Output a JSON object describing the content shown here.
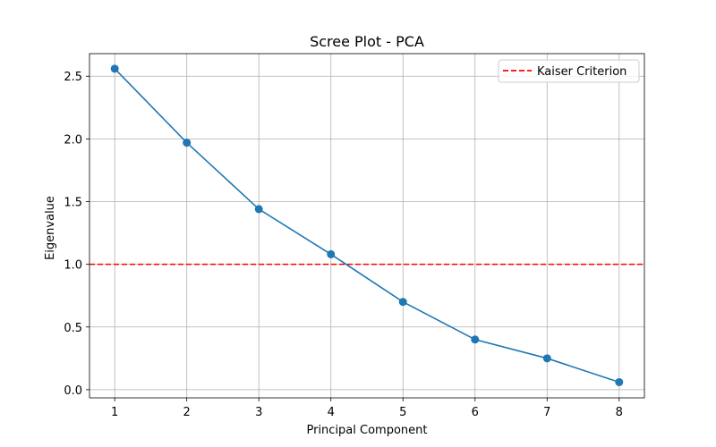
{
  "chart_data": {
    "type": "line",
    "title": "Scree Plot - PCA",
    "xlabel": "Principal Component",
    "ylabel": "Eigenvalue",
    "x": [
      1,
      2,
      3,
      4,
      5,
      6,
      7,
      8
    ],
    "series": [
      {
        "values": [
          2.56,
          1.97,
          1.44,
          1.08,
          0.7,
          0.4,
          0.25,
          0.06
        ],
        "color": "#1f77b4",
        "marker": "circle"
      }
    ],
    "reference_lines": [
      {
        "name": "Kaiser Criterion",
        "orientation": "horizontal",
        "y": 1.0,
        "color": "#ff0000",
        "style": "dashed"
      }
    ],
    "xlim": [
      0.65,
      8.35
    ],
    "ylim": [
      -0.065,
      2.68
    ],
    "xticks": [
      1,
      2,
      3,
      4,
      5,
      6,
      7,
      8
    ],
    "xtick_labels": [
      "1",
      "2",
      "3",
      "4",
      "5",
      "6",
      "7",
      "8"
    ],
    "yticks": [
      0.0,
      0.5,
      1.0,
      1.5,
      2.0,
      2.5
    ],
    "ytick_labels": [
      "0.0",
      "0.5",
      "1.0",
      "1.5",
      "2.0",
      "2.5"
    ],
    "grid": true,
    "legend": {
      "placement": "top-right",
      "entries": [
        "Kaiser Criterion"
      ]
    }
  }
}
